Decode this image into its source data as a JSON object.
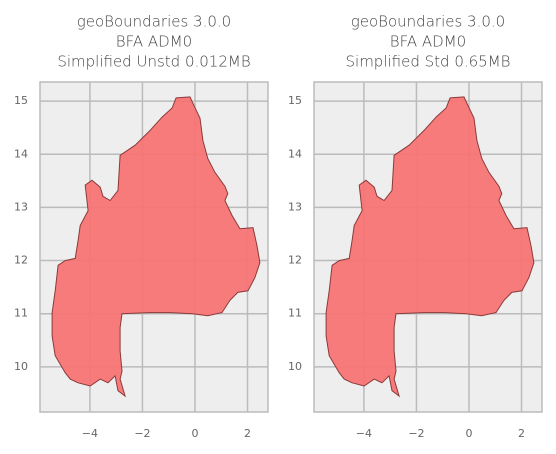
{
  "chart_data": [
    {
      "type": "map",
      "title": [
        "geoBoundaries 3.0.0",
        "BFA ADM0",
        "Simplified Unstd 0.012MB"
      ],
      "x": [
        -0.72,
        -0.19,
        -0.08,
        0.19,
        0.3,
        0.49,
        0.76,
        1.14,
        1.25,
        1.14,
        1.41,
        1.71,
        2.21,
        2.36,
        2.47,
        2.28,
        2.02,
        1.63,
        1.33,
        1.03,
        0.49,
        -0.11,
        -0.95,
        -1.71,
        -2.78,
        -2.85,
        -2.85,
        -2.78,
        -2.85,
        -2.66,
        -2.93,
        -3.04,
        -3.31,
        -3.61,
        -3.99,
        -4.45,
        -4.75,
        -4.94,
        -5.32,
        -5.44,
        -5.44,
        -5.32,
        -5.21,
        -4.94,
        -4.56,
        -4.45,
        -4.37,
        -4.07,
        -4.18,
        -3.92,
        -3.61,
        -3.5,
        -3.23,
        -2.93,
        -2.85,
        -2.28,
        -1.71,
        -1.25,
        -0.87
      ],
      "y": [
        15.06,
        15.08,
        14.96,
        14.68,
        14.26,
        13.92,
        13.66,
        13.4,
        13.26,
        13.13,
        12.85,
        12.6,
        12.62,
        12.28,
        11.96,
        11.68,
        11.43,
        11.4,
        11.25,
        11.02,
        10.96,
        11.0,
        11.02,
        11.02,
        11.0,
        10.74,
        10.3,
        9.92,
        9.77,
        9.45,
        9.55,
        9.83,
        9.7,
        9.77,
        9.64,
        9.7,
        9.77,
        9.89,
        10.21,
        10.58,
        11.02,
        11.43,
        11.91,
        12.0,
        12.04,
        12.38,
        12.66,
        12.94,
        13.42,
        13.51,
        13.38,
        13.21,
        13.13,
        13.32,
        13.98,
        14.17,
        14.45,
        14.7,
        14.87
      ],
      "color": "#f77474",
      "xlim": [
        -5.9,
        2.78
      ],
      "ylim": [
        9.15,
        15.36
      ],
      "xticks": [
        {
          "value": -4,
          "label": "−4"
        },
        {
          "value": -2,
          "label": "−2"
        },
        0,
        2
      ],
      "yticks": [
        10,
        11,
        12,
        13,
        14,
        15
      ],
      "grid": true
    },
    {
      "type": "map",
      "title": [
        "geoBoundaries 3.0.0",
        "BFA ADM0",
        "Simplified Std 0.65MB"
      ],
      "x": [
        -0.72,
        -0.19,
        -0.08,
        0.19,
        0.3,
        0.49,
        0.76,
        1.14,
        1.25,
        1.14,
        1.41,
        1.71,
        2.21,
        2.36,
        2.47,
        2.28,
        2.02,
        1.63,
        1.33,
        1.03,
        0.49,
        -0.11,
        -0.95,
        -1.71,
        -2.78,
        -2.85,
        -2.85,
        -2.78,
        -2.85,
        -2.66,
        -2.93,
        -3.04,
        -3.31,
        -3.61,
        -3.99,
        -4.45,
        -4.75,
        -4.94,
        -5.32,
        -5.44,
        -5.44,
        -5.32,
        -5.21,
        -4.94,
        -4.56,
        -4.45,
        -4.37,
        -4.07,
        -4.18,
        -3.92,
        -3.61,
        -3.5,
        -3.23,
        -2.93,
        -2.85,
        -2.28,
        -1.71,
        -1.25,
        -0.87
      ],
      "y": [
        15.06,
        15.08,
        14.96,
        14.68,
        14.26,
        13.92,
        13.66,
        13.4,
        13.26,
        13.13,
        12.85,
        12.6,
        12.62,
        12.28,
        11.96,
        11.68,
        11.43,
        11.4,
        11.25,
        11.02,
        10.96,
        11.0,
        11.02,
        11.02,
        11.0,
        10.74,
        10.3,
        9.92,
        9.77,
        9.45,
        9.55,
        9.83,
        9.7,
        9.77,
        9.64,
        9.7,
        9.77,
        9.89,
        10.21,
        10.58,
        11.02,
        11.43,
        11.91,
        12.0,
        12.04,
        12.38,
        12.66,
        12.94,
        13.42,
        13.51,
        13.38,
        13.21,
        13.13,
        13.32,
        13.98,
        14.17,
        14.45,
        14.7,
        14.87
      ],
      "color": "#f77474",
      "xlim": [
        -5.9,
        2.78
      ],
      "ylim": [
        9.15,
        15.36
      ],
      "xticks": [
        {
          "value": -4,
          "label": "−4"
        },
        {
          "value": -2,
          "label": "−2"
        },
        0,
        2
      ],
      "yticks": [
        10,
        11,
        12,
        13,
        14,
        15
      ],
      "grid": true
    }
  ]
}
